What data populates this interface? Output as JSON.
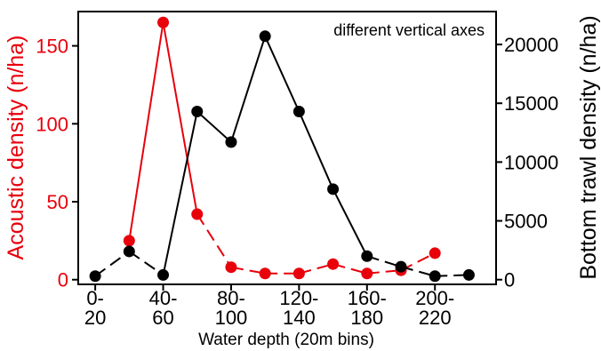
{
  "chart_data": {
    "type": "line",
    "annotation": "different vertical axes",
    "xlabel": "Water depth (20m bins)",
    "x_tick_labels": [
      {
        "line1": "0-",
        "line2": "20"
      },
      {
        "line1": "40-",
        "line2": "60"
      },
      {
        "line1": "80-",
        "line2": "100"
      },
      {
        "line1": "120-",
        "line2": "140"
      },
      {
        "line1": "160-",
        "line2": "180"
      },
      {
        "line1": "200-",
        "line2": "220"
      }
    ],
    "x": [
      0,
      1,
      2,
      3,
      4,
      5,
      6,
      7,
      8,
      9,
      10,
      11
    ],
    "xlim": [
      -0.5,
      11.8
    ],
    "y_left": {
      "label": "Acoustic density (n/ha)",
      "ticks": [
        "0",
        "50",
        "100",
        "150"
      ],
      "tick_values": [
        0,
        50,
        100,
        150
      ],
      "lim": [
        -3,
        172
      ]
    },
    "y_right": {
      "label": "Bottom trawl density (n/ha)",
      "ticks": [
        "0",
        "5000",
        "10000",
        "15000",
        "20000"
      ],
      "tick_values": [
        0,
        5000,
        10000,
        15000,
        20000
      ],
      "lim": [
        -400,
        22800
      ]
    },
    "series": [
      {
        "axis": "left",
        "color": "#e8000b",
        "x": [
          1,
          2,
          3,
          4,
          5,
          6,
          7,
          8,
          9,
          10
        ],
        "values": [
          25,
          165,
          42,
          8,
          4,
          4,
          10,
          4,
          6,
          17
        ],
        "segments": [
          {
            "from": 1,
            "to": 2,
            "dash": false
          },
          {
            "from": 2,
            "to": 3,
            "dash": false
          },
          {
            "from": 3,
            "to": 4,
            "dash": true
          },
          {
            "from": 4,
            "to": 5,
            "dash": true
          },
          {
            "from": 5,
            "to": 6,
            "dash": true
          },
          {
            "from": 6,
            "to": 7,
            "dash": true
          },
          {
            "from": 7,
            "to": 8,
            "dash": true
          },
          {
            "from": 8,
            "to": 9,
            "dash": true
          },
          {
            "from": 9,
            "to": 10,
            "dash": true
          }
        ]
      },
      {
        "axis": "right",
        "color": "#000000",
        "x": [
          0,
          1,
          2,
          3,
          4,
          5,
          6,
          7,
          8,
          9,
          10,
          11
        ],
        "values": [
          300,
          2400,
          400,
          14300,
          11700,
          20700,
          14300,
          7700,
          2000,
          1100,
          300,
          400
        ],
        "segments": [
          {
            "from": 0,
            "to": 1,
            "dash": true
          },
          {
            "from": 1,
            "to": 2,
            "dash": true
          },
          {
            "from": 2,
            "to": 3,
            "dash": false
          },
          {
            "from": 3,
            "to": 4,
            "dash": false
          },
          {
            "from": 4,
            "to": 5,
            "dash": false
          },
          {
            "from": 5,
            "to": 6,
            "dash": false
          },
          {
            "from": 6,
            "to": 7,
            "dash": false
          },
          {
            "from": 7,
            "to": 8,
            "dash": false
          },
          {
            "from": 8,
            "to": 9,
            "dash": true
          },
          {
            "from": 9,
            "to": 10,
            "dash": true
          },
          {
            "from": 10,
            "to": 11,
            "dash": true
          }
        ]
      }
    ]
  }
}
